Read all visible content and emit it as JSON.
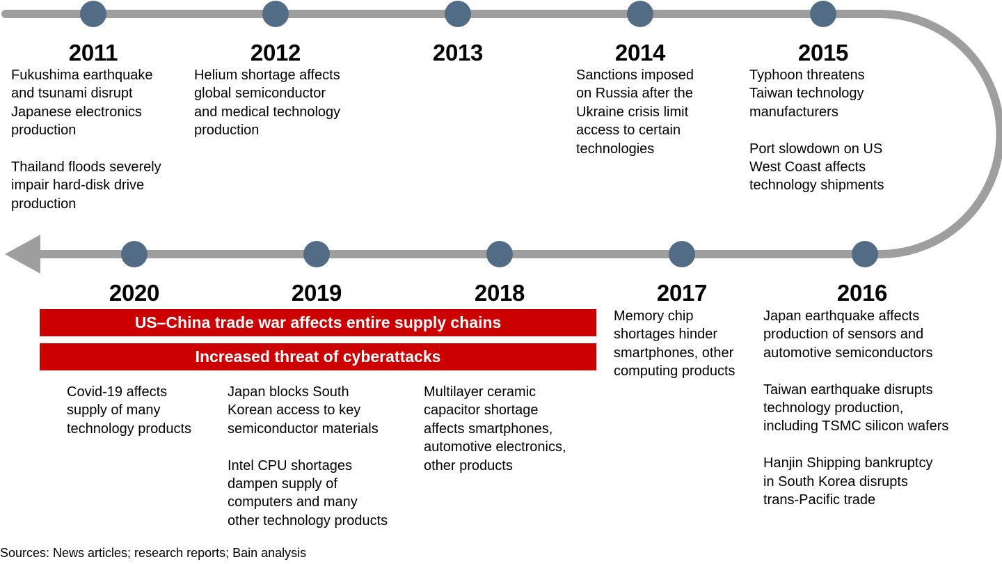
{
  "colors": {
    "track": "#9e9e9e",
    "dot": "#536c85",
    "banner": "#cc0000",
    "banner_text": "#ffffff",
    "text": "#000000"
  },
  "timeline": {
    "top_row": [
      {
        "year": "2011",
        "events": [
          [
            "Fukushima earthquake",
            "and tsunami disrupt",
            "Japanese electronics",
            "production"
          ],
          [
            "Thailand floods severely",
            "impair hard-disk drive",
            "production"
          ]
        ]
      },
      {
        "year": "2012",
        "events": [
          [
            "Helium shortage affects",
            "global semiconductor",
            "and medical technology",
            "production"
          ]
        ]
      },
      {
        "year": "2013",
        "events": []
      },
      {
        "year": "2014",
        "events": [
          [
            "Sanctions imposed",
            "on Russia after the",
            "Ukraine crisis limit",
            "access to certain",
            "technologies"
          ]
        ]
      },
      {
        "year": "2015",
        "events": [
          [
            "Typhoon threatens",
            "Taiwan technology",
            "manufacturers"
          ],
          [
            "Port slowdown on US",
            "West Coast affects",
            "technology shipments"
          ]
        ]
      }
    ],
    "bottom_row": [
      {
        "year": "2020",
        "events": [
          [
            "Covid-19 affects",
            "supply of many",
            "technology products"
          ]
        ]
      },
      {
        "year": "2019",
        "events": [
          [
            "Japan blocks South",
            "Korean access to key",
            "semiconductor materials"
          ],
          [
            "Intel CPU shortages",
            "dampen supply of",
            "computers and many",
            "other technology products"
          ]
        ]
      },
      {
        "year": "2018",
        "events": [
          [
            "Multilayer ceramic",
            "capacitor shortage",
            "affects smartphones,",
            "automotive electronics,",
            "other products"
          ]
        ]
      },
      {
        "year": "2017",
        "events": [
          [
            "Memory chip",
            "shortages hinder",
            "smartphones, other",
            "computing products"
          ]
        ]
      },
      {
        "year": "2016",
        "events": [
          [
            "Japan earthquake affects",
            "production of sensors and",
            "automotive semiconductors"
          ],
          [
            "Taiwan earthquake disrupts",
            "technology production,",
            "including TSMC silicon wafers"
          ],
          [
            "Hanjin Shipping bankruptcy",
            "in South Korea disrupts",
            "trans-Pacific trade"
          ]
        ]
      }
    ]
  },
  "banners": [
    "US–China trade war affects entire supply chains",
    "Increased threat of cyberattacks"
  ],
  "footer": {
    "sources": "Sources: News articles; research reports; Bain analysis"
  }
}
